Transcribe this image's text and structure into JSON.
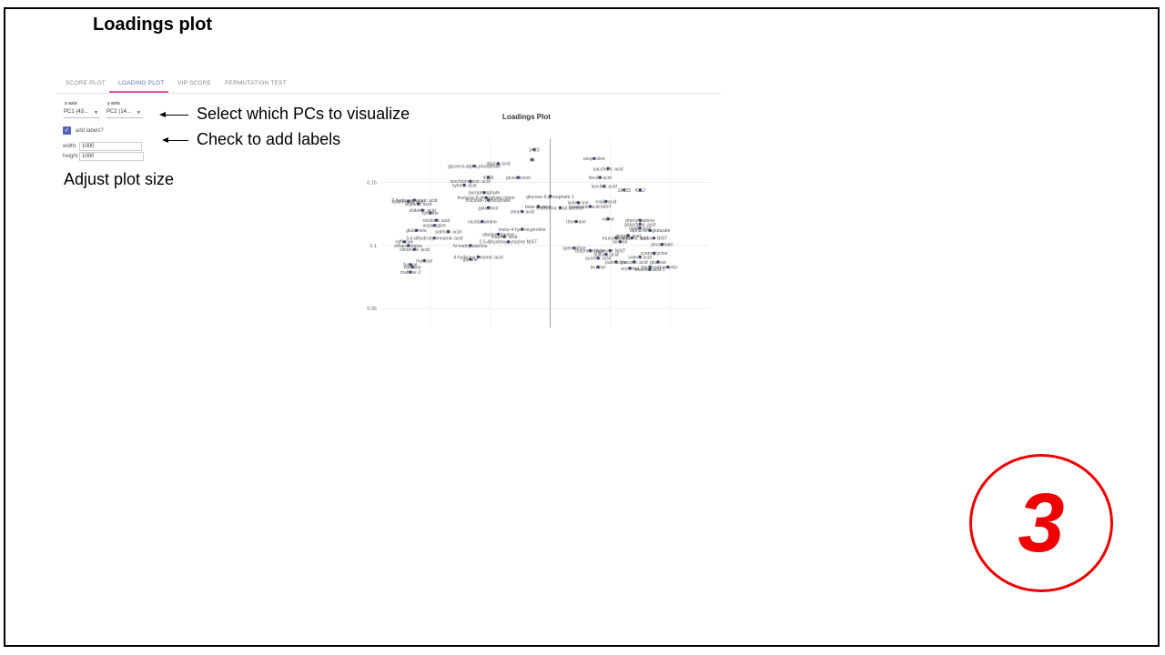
{
  "slide": {
    "title": "Loadings plot",
    "step_number": "3"
  },
  "tabs": [
    {
      "label": "SCORE PLOT",
      "active": false
    },
    {
      "label": "LOADING PLOT",
      "active": true
    },
    {
      "label": "VIP SCORE",
      "active": false
    },
    {
      "label": "PERMUTATION TEST",
      "active": false
    }
  ],
  "controls": {
    "x_axis_label": "x axis",
    "x_axis_value": "PC1 (43...",
    "y_axis_label": "y axis",
    "y_axis_value": "PC2 (14...",
    "add_labels": "add labels?",
    "add_labels_checked": true,
    "width_label": "width:",
    "width_value": "1000",
    "height_label": "height:",
    "height_value": "1000"
  },
  "annotations": {
    "select_pcs": "Select which PCs to visualize",
    "check_labels": "Check to add labels",
    "adjust_size": "Adjust plot size"
  },
  "colors": {
    "accent": "#e05a9c",
    "tab_active": "#5a6fb3",
    "point": "#2c3e6b",
    "badge": "#e00000"
  },
  "chart_data": {
    "type": "scatter",
    "title": "Loadings Plot",
    "ylim": [
      0.035,
      0.185
    ],
    "xlim": [
      -0.085,
      0.08
    ],
    "yticks": [
      0.05,
      0.1,
      0.15
    ],
    "xticks": [
      0
    ],
    "grid": true,
    "points": [
      {
        "label": "3423",
        "x": -0.008,
        "y": 0.176
      },
      {
        "label": "56",
        "x": -0.009,
        "y": 0.168
      },
      {
        "label": "oxoproline",
        "x": 0.022,
        "y": 0.169
      },
      {
        "label": "ribonic acid",
        "x": -0.026,
        "y": 0.165
      },
      {
        "label": "glycerol-alpha-phosphate",
        "x": -0.038,
        "y": 0.163
      },
      {
        "label": "saccharic acid",
        "x": 0.029,
        "y": 0.161
      },
      {
        "label": "4368",
        "x": -0.031,
        "y": 0.154
      },
      {
        "label": "piceatannol",
        "x": -0.016,
        "y": 0.154
      },
      {
        "label": "ferulic acid",
        "x": 0.025,
        "y": 0.154
      },
      {
        "label": "isochlorogenic acid",
        "x": -0.04,
        "y": 0.151
      },
      {
        "label": "xylonic acid",
        "x": -0.043,
        "y": 0.148
      },
      {
        "label": "isocitric acid",
        "x": 0.027,
        "y": 0.147
      },
      {
        "label": "16433",
        "x": 0.037,
        "y": 0.144
      },
      {
        "label": "4312",
        "x": 0.045,
        "y": 0.144
      },
      {
        "label": "pyrophosphate",
        "x": -0.033,
        "y": 0.142
      },
      {
        "label": "fructose-6-phosphate minor",
        "x": -0.032,
        "y": 0.138
      },
      {
        "label": "fructose-1-phosphate",
        "x": -0.031,
        "y": 0.136
      },
      {
        "label": "glucose-6-phosphate 1",
        "x": 0.0,
        "y": 0.139
      },
      {
        "label": "malic acid",
        "x": 0.028,
        "y": 0.135
      },
      {
        "label": "isoleucine",
        "x": 0.014,
        "y": 0.134
      },
      {
        "label": "beta-alanine",
        "x": -0.006,
        "y": 0.131
      },
      {
        "label": "erythronic acid lactone",
        "x": 0.005,
        "y": 0.13
      },
      {
        "label": "parabanic acid NIST",
        "x": 0.02,
        "y": 0.131
      },
      {
        "label": "2-hydroxyglutaric acid",
        "x": -0.068,
        "y": 0.136
      },
      {
        "label": "isothreonic acid",
        "x": -0.071,
        "y": 0.135
      },
      {
        "label": "aspartic acid",
        "x": -0.066,
        "y": 0.133
      },
      {
        "label": "galactinol",
        "x": -0.031,
        "y": 0.13
      },
      {
        "label": "shikimic acid",
        "x": -0.064,
        "y": 0.128
      },
      {
        "label": "tyrosine",
        "x": -0.06,
        "y": 0.126
      },
      {
        "label": "stearic acid",
        "x": -0.014,
        "y": 0.127
      },
      {
        "label": "nicotinic acid",
        "x": -0.057,
        "y": 0.12
      },
      {
        "label": "nicotianamine",
        "x": -0.034,
        "y": 0.119
      },
      {
        "label": "threonine",
        "x": 0.013,
        "y": 0.119
      },
      {
        "label": "valine",
        "x": 0.029,
        "y": 0.121
      },
      {
        "label": "phenylalanine",
        "x": 0.045,
        "y": 0.12
      },
      {
        "label": "asparagine",
        "x": -0.058,
        "y": 0.116
      },
      {
        "label": "galactonic acid",
        "x": 0.045,
        "y": 0.117
      },
      {
        "label": "oxalic acid",
        "x": 0.045,
        "y": 0.114
      },
      {
        "label": "alpha-ketoglutarate",
        "x": 0.05,
        "y": 0.112
      },
      {
        "label": "glutamine",
        "x": -0.067,
        "y": 0.112
      },
      {
        "label": "palmitic acid",
        "x": -0.051,
        "y": 0.111
      },
      {
        "label": "trans-4-hydroxyproline",
        "x": -0.014,
        "y": 0.113
      },
      {
        "label": "glutaric acid",
        "x": 0.039,
        "y": 0.108
      },
      {
        "label": "alanine-alanine",
        "x": -0.026,
        "y": 0.109
      },
      {
        "label": "malonic acid",
        "x": -0.023,
        "y": 0.107
      },
      {
        "label": "muconic acid",
        "x": 0.033,
        "y": 0.106
      },
      {
        "label": "lactobionic acid",
        "x": 0.041,
        "y": 0.106
      },
      {
        "label": "lactose NIST",
        "x": 0.052,
        "y": 0.106
      },
      {
        "label": "3,4-dihydroxycinnamic acid",
        "x": -0.058,
        "y": 0.106
      },
      {
        "label": "2,5-dihydroxypyrazine NIST",
        "x": -0.021,
        "y": 0.103
      },
      {
        "label": "raffinose",
        "x": -0.073,
        "y": 0.103
      },
      {
        "label": "lactose",
        "x": 0.035,
        "y": 0.103
      },
      {
        "label": "phosphate",
        "x": 0.056,
        "y": 0.101
      },
      {
        "label": "ethanolamine",
        "x": -0.071,
        "y": 0.1
      },
      {
        "label": "N-methylalanine",
        "x": -0.04,
        "y": 0.1
      },
      {
        "label": "citramalic acid",
        "x": -0.068,
        "y": 0.097
      },
      {
        "label": "spermidine",
        "x": 0.012,
        "y": 0.098
      },
      {
        "label": "butyraldehyde",
        "x": 0.02,
        "y": 0.096
      },
      {
        "label": "glycerate NIST",
        "x": 0.03,
        "y": 0.096
      },
      {
        "label": "cyanoglycine",
        "x": 0.052,
        "y": 0.094
      },
      {
        "label": "sulfuric acid",
        "x": 0.028,
        "y": 0.093
      },
      {
        "label": "4-hydroxycinnamic acid",
        "x": -0.036,
        "y": 0.091
      },
      {
        "label": "valeric acid",
        "x": 0.045,
        "y": 0.091
      },
      {
        "label": "glycine",
        "x": -0.04,
        "y": 0.089
      },
      {
        "label": "aconitic acid",
        "x": 0.024,
        "y": 0.09
      },
      {
        "label": "maltose",
        "x": -0.063,
        "y": 0.088
      },
      {
        "label": "putrescine",
        "x": 0.033,
        "y": 0.087
      },
      {
        "label": "gluconic acid",
        "x": 0.042,
        "y": 0.087
      },
      {
        "label": "glucose",
        "x": 0.054,
        "y": 0.087
      },
      {
        "label": "fucose",
        "x": -0.07,
        "y": 0.085
      },
      {
        "label": "histidine",
        "x": -0.069,
        "y": 0.083
      },
      {
        "label": "leucine",
        "x": 0.024,
        "y": 0.083
      },
      {
        "label": "erythritol",
        "x": 0.04,
        "y": 0.082
      },
      {
        "label": "tagatose",
        "x": 0.05,
        "y": 0.083
      },
      {
        "label": "quercetin",
        "x": 0.059,
        "y": 0.083
      },
      {
        "label": "malonic acid 2",
        "x": 0.05,
        "y": 0.081
      },
      {
        "label": "maltose 2",
        "x": -0.07,
        "y": 0.079
      }
    ]
  }
}
